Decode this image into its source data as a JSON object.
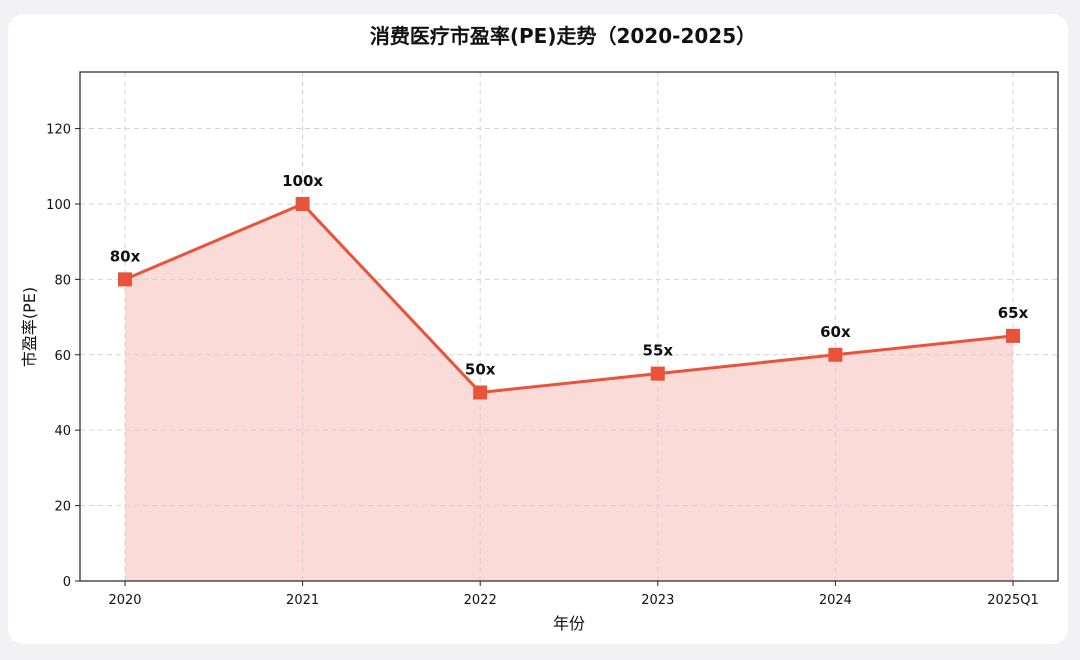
{
  "chart_data": {
    "type": "line",
    "title": "消费医疗市盈率(PE)走势（2020-2025）",
    "xlabel": "年份",
    "ylabel": "市盈率(PE)",
    "categories": [
      "2020",
      "2021",
      "2022",
      "2023",
      "2024",
      "2025Q1"
    ],
    "series": [
      {
        "values": [
          80,
          100,
          50,
          55,
          60,
          65
        ],
        "data_labels": [
          "80x",
          "100x",
          "50x",
          "55x",
          "60x",
          "65x"
        ]
      }
    ],
    "ylim": [
      0,
      135
    ],
    "yticks": [
      0,
      20,
      40,
      60,
      80,
      100,
      120
    ],
    "grid": true,
    "filled_area": true,
    "colors": {
      "line": "#e8533a",
      "fill": "#fadbd8",
      "grid": "#d3d3d3",
      "text": "#111111"
    }
  }
}
